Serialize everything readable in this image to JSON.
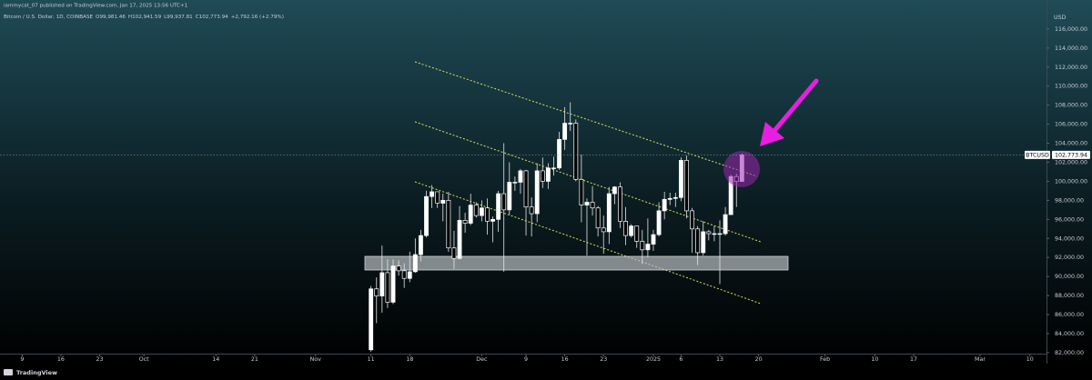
{
  "chart_data": {
    "type": "candlestick",
    "publisher": "iammycat_07 published on TradingView.com, Jan 17, 2025 13:56 UTC+1",
    "title": "Bitcoin / U.S. Dollar, 1D, COINBASE",
    "ohlc_labels": [
      "O99,981.46",
      "H102,941.59",
      "L99,937.81",
      "C102,773.94"
    ],
    "change": "+2,792.16 (+2.79%)",
    "currency": "USD",
    "symbol": "BTCUSD",
    "brand": "TradingView",
    "last_price": {
      "value": 102773.94,
      "label": "102,773.94"
    },
    "up_color": "#ffffff",
    "down_color": "#000000",
    "x": [
      "Nov 11",
      "Nov 12",
      "Nov 13",
      "Nov 14",
      "Nov 15",
      "Nov 16",
      "Nov 17",
      "Nov 18",
      "Nov 19",
      "Nov 20",
      "Nov 21",
      "Nov 22",
      "Nov 23",
      "Nov 24",
      "Nov 25",
      "Nov 26",
      "Nov 27",
      "Nov 28",
      "Nov 29",
      "Nov 30",
      "Dec 1",
      "Dec 2",
      "Dec 3",
      "Dec 4",
      "Dec 5",
      "Dec 6",
      "Dec 7",
      "Dec 8",
      "Dec 9",
      "Dec 10",
      "Dec 11",
      "Dec 12",
      "Dec 13",
      "Dec 14",
      "Dec 15",
      "Dec 16",
      "Dec 17",
      "Dec 18",
      "Dec 19",
      "Dec 20",
      "Dec 21",
      "Dec 22",
      "Dec 23",
      "Dec 24",
      "Dec 25",
      "Dec 26",
      "Dec 27",
      "Dec 28",
      "Dec 29",
      "Dec 30",
      "Dec 31",
      "Jan 1",
      "Jan 2",
      "Jan 3",
      "Jan 4",
      "Jan 5",
      "Jan 6",
      "Jan 7",
      "Jan 8",
      "Jan 9",
      "Jan 10",
      "Jan 11",
      "Jan 12",
      "Jan 13",
      "Jan 14",
      "Jan 15",
      "Jan 16",
      "Jan 17"
    ],
    "open": [
      82300,
      88700,
      87950,
      90400,
      87300,
      91100,
      90600,
      89800,
      90500,
      92300,
      94300,
      98400,
      98900,
      97700,
      98000,
      93000,
      91900,
      95900,
      95600,
      97500,
      96400,
      97200,
      95800,
      96000,
      98700,
      97000,
      99900,
      99900,
      101100,
      97300,
      96600,
      101100,
      100000,
      101400,
      101400,
      104400,
      106100,
      106100,
      100200,
      97500,
      97800,
      97200,
      95100,
      94700,
      98700,
      99400,
      95800,
      94300,
      95300,
      93700,
      92800,
      93400,
      94400,
      96900,
      98100,
      98200,
      98300,
      102200,
      96900,
      95000,
      92500,
      94700,
      94500,
      94500,
      94500,
      96500,
      100500,
      99981.46
    ],
    "high": [
      89000,
      89900,
      93250,
      91800,
      91800,
      91700,
      91400,
      92600,
      94000,
      94900,
      99000,
      99600,
      98900,
      98700,
      98900,
      94800,
      97400,
      96700,
      98700,
      97800,
      98000,
      98200,
      96300,
      99000,
      104000,
      102000,
      100500,
      101300,
      101200,
      98300,
      101900,
      102500,
      101900,
      102600,
      105200,
      107800,
      108300,
      106500,
      102800,
      98200,
      99500,
      97400,
      96400,
      99400,
      99500,
      99900,
      97300,
      95500,
      95200,
      94900,
      96100,
      94900,
      97800,
      98900,
      98800,
      98800,
      102500,
      102700,
      97200,
      95300,
      95800,
      94900,
      95300,
      95900,
      97300,
      100700,
      100800,
      102941.59
    ],
    "low": [
      82100,
      85100,
      86200,
      86700,
      87100,
      90100,
      88800,
      89400,
      90400,
      91600,
      94100,
      97200,
      97200,
      95800,
      92600,
      90800,
      91800,
      94600,
      95400,
      96200,
      95800,
      94400,
      93600,
      94700,
      90500,
      96500,
      99000,
      98700,
      94300,
      94200,
      95700,
      99300,
      99200,
      100600,
      101200,
      103300,
      105300,
      100000,
      95700,
      92200,
      96400,
      94200,
      92400,
      93400,
      97600,
      95100,
      93300,
      94100,
      93000,
      91300,
      92000,
      92700,
      94200,
      96000,
      97500,
      97300,
      97900,
      96100,
      92500,
      91200,
      92200,
      93800,
      93700,
      89200,
      94300,
      96500,
      97300,
      99937.81
    ],
    "close": [
      88700,
      87950,
      90400,
      87300,
      91100,
      90600,
      89800,
      90500,
      92300,
      94300,
      98400,
      98900,
      97700,
      98000,
      93000,
      91900,
      95900,
      95600,
      97500,
      96400,
      97200,
      95800,
      96000,
      98700,
      97000,
      99900,
      99900,
      101100,
      97300,
      96600,
      101100,
      100000,
      101400,
      101400,
      104400,
      106100,
      106100,
      100200,
      97500,
      97800,
      97200,
      95100,
      94700,
      98700,
      99400,
      95800,
      94300,
      95300,
      93700,
      92800,
      93400,
      94400,
      96900,
      98100,
      98200,
      98300,
      102200,
      96900,
      95000,
      92500,
      94700,
      94500,
      94500,
      94500,
      96500,
      100500,
      99981.46,
      102773.94
    ],
    "xlim": [
      "Sep 5",
      "Mar 13"
    ],
    "xticks": [
      {
        "value": "Sep 9",
        "label": "9"
      },
      {
        "value": "Sep 16",
        "label": "16"
      },
      {
        "value": "Sep 23",
        "label": "23"
      },
      {
        "value": "Oct 1",
        "label": "Oct"
      },
      {
        "value": "Oct 14",
        "label": "14"
      },
      {
        "value": "Oct 21",
        "label": "21"
      },
      {
        "value": "Nov 1",
        "label": "Nov"
      },
      {
        "value": "Nov 11",
        "label": "11"
      },
      {
        "value": "Nov 18",
        "label": "18"
      },
      {
        "value": "Dec 1",
        "label": "Dec"
      },
      {
        "value": "Dec 9",
        "label": "9"
      },
      {
        "value": "Dec 16",
        "label": "16"
      },
      {
        "value": "Dec 23",
        "label": "23"
      },
      {
        "value": "Jan 1",
        "label": "2025"
      },
      {
        "value": "Jan 6",
        "label": "6"
      },
      {
        "value": "Jan 13",
        "label": "13"
      },
      {
        "value": "Jan 20",
        "label": "20"
      },
      {
        "value": "Feb 1",
        "label": "Feb"
      },
      {
        "value": "Feb 10",
        "label": "10"
      },
      {
        "value": "Feb 17",
        "label": "17"
      },
      {
        "value": "Mar 1",
        "label": "Mar"
      },
      {
        "value": "Mar 10",
        "label": "10"
      }
    ],
    "ylim": [
      81800,
      117900
    ],
    "yticks": [
      {
        "value": 82000,
        "label": "82,000.00"
      },
      {
        "value": 84000,
        "label": "84,000.00"
      },
      {
        "value": 86000,
        "label": "86,000.00"
      },
      {
        "value": 88000,
        "label": "88,000.00"
      },
      {
        "value": 90000,
        "label": "90,000.00"
      },
      {
        "value": 92000,
        "label": "92,000.00"
      },
      {
        "value": 94000,
        "label": "94,000.00"
      },
      {
        "value": 96000,
        "label": "96,000.00"
      },
      {
        "value": 98000,
        "label": "98,000.00"
      },
      {
        "value": 100000,
        "label": "100,000.00"
      },
      {
        "value": 102000,
        "label": "102,000.00"
      },
      {
        "value": 104000,
        "label": "104,000.00"
      },
      {
        "value": 106000,
        "label": "106,000.00"
      },
      {
        "value": 108000,
        "label": "108,000.00"
      },
      {
        "value": 110000,
        "label": "110,000.00"
      },
      {
        "value": 112000,
        "label": "112,000.00"
      },
      {
        "value": 114000,
        "label": "114,000.00"
      },
      {
        "value": 116000,
        "label": "116,000.00"
      }
    ]
  }
}
